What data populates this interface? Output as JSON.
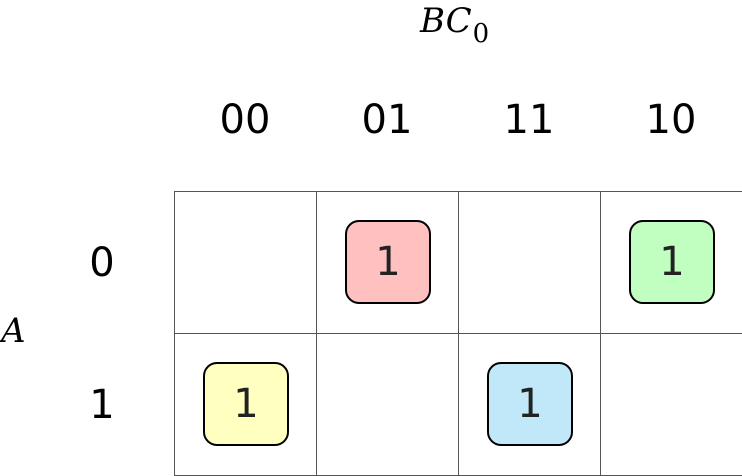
{
  "column_variable": {
    "base": "BC",
    "subscript": "0"
  },
  "row_variable": "A",
  "column_headers": [
    "00",
    "01",
    "11",
    "10"
  ],
  "row_headers": [
    "0",
    "1"
  ],
  "cells": [
    [
      {
        "value": "",
        "color": null
      },
      {
        "value": "1",
        "color": "#ffc0c0"
      },
      {
        "value": "",
        "color": null
      },
      {
        "value": "1",
        "color": "#c0ffc0"
      }
    ],
    [
      {
        "value": "1",
        "color": "#ffffc0"
      },
      {
        "value": "",
        "color": null
      },
      {
        "value": "1",
        "color": "#c0e8f8"
      },
      {
        "value": "",
        "color": null
      }
    ]
  ]
}
